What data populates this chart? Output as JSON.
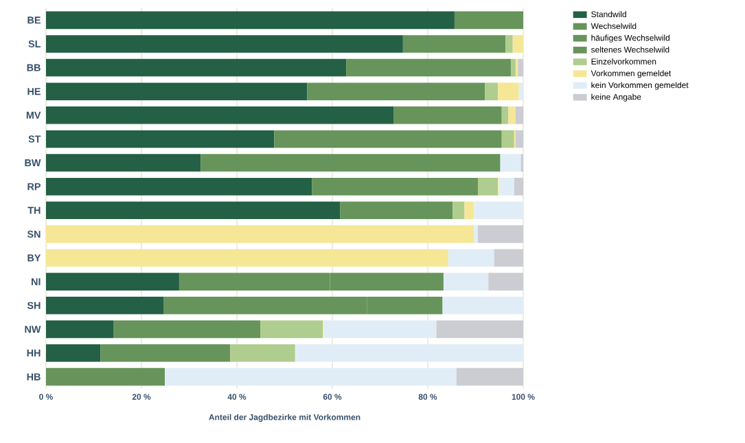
{
  "chart_data": {
    "type": "bar",
    "orientation": "horizontal",
    "stacked": true,
    "xlabel": "Anteil der Jagdbezirke mit Vorkommen",
    "categories": [
      "BE",
      "SL",
      "BB",
      "HE",
      "MV",
      "ST",
      "BW",
      "RP",
      "TH",
      "SN",
      "BY",
      "NI",
      "SH",
      "NW",
      "HH",
      "HB"
    ],
    "series": [
      {
        "name": "Standwild",
        "color": "#236045",
        "values": [
          85.6,
          74.8,
          62.9,
          54.7,
          72.9,
          47.8,
          32.4,
          55.7,
          61.6,
          null,
          null,
          27.9,
          24.7,
          14.1,
          11.4,
          null
        ]
      },
      {
        "name": "Wechselwild",
        "color": "#66945a",
        "values": [
          14.4,
          21.5,
          34.5,
          37.3,
          22.6,
          47.7,
          62.8,
          34.8,
          23.6,
          null,
          null,
          null,
          42.6,
          30.8,
          27.2,
          24.9
        ]
      },
      {
        "name": "häufiges Wechselwild",
        "color": "#66945a",
        "values": [
          null,
          null,
          null,
          null,
          null,
          null,
          null,
          null,
          null,
          null,
          null,
          31.6,
          null,
          null,
          null,
          null
        ]
      },
      {
        "name": "seltenes Wechselwild",
        "color": "#66945a",
        "values": [
          null,
          null,
          null,
          null,
          null,
          null,
          null,
          null,
          null,
          null,
          null,
          23.8,
          15.8,
          null,
          null,
          null
        ]
      },
      {
        "name": "Einzelvorkommen",
        "color": "#afcd8f",
        "values": [
          null,
          1.5,
          1.0,
          2.7,
          1.4,
          2.6,
          null,
          4.2,
          2.5,
          null,
          null,
          null,
          null,
          13.1,
          13.6,
          null
        ]
      },
      {
        "name": "Vorkommen gemeldet",
        "color": "#f6e797",
        "values": [
          null,
          2.2,
          0.5,
          4.4,
          1.5,
          0.3,
          null,
          0.2,
          2.0,
          89.7,
          84.3,
          null,
          null,
          0.2,
          null,
          null
        ]
      },
      {
        "name": "kein Vorkommen gemeldet",
        "color": "#e1edf6",
        "values": [
          null,
          null,
          null,
          0.9,
          null,
          null,
          4.3,
          3.2,
          10.3,
          0.8,
          9.6,
          9.4,
          16.9,
          23.6,
          47.8,
          61.1
        ]
      },
      {
        "name": "keine Angabe",
        "color": "#cccdd2",
        "values": [
          null,
          null,
          1.1,
          null,
          1.6,
          1.6,
          0.5,
          1.9,
          null,
          9.5,
          6.1,
          7.3,
          null,
          18.2,
          null,
          14.0
        ]
      }
    ],
    "xlim": [
      0,
      100
    ],
    "xticks": [
      {
        "value": 0,
        "label": "0 %"
      },
      {
        "value": 20,
        "label": "20 %"
      },
      {
        "value": 40,
        "label": "40 %"
      },
      {
        "value": 60,
        "label": "60 %"
      },
      {
        "value": 80,
        "label": "80 %"
      },
      {
        "value": 100,
        "label": "100 %"
      }
    ],
    "grid": "x",
    "legend": "top right"
  }
}
